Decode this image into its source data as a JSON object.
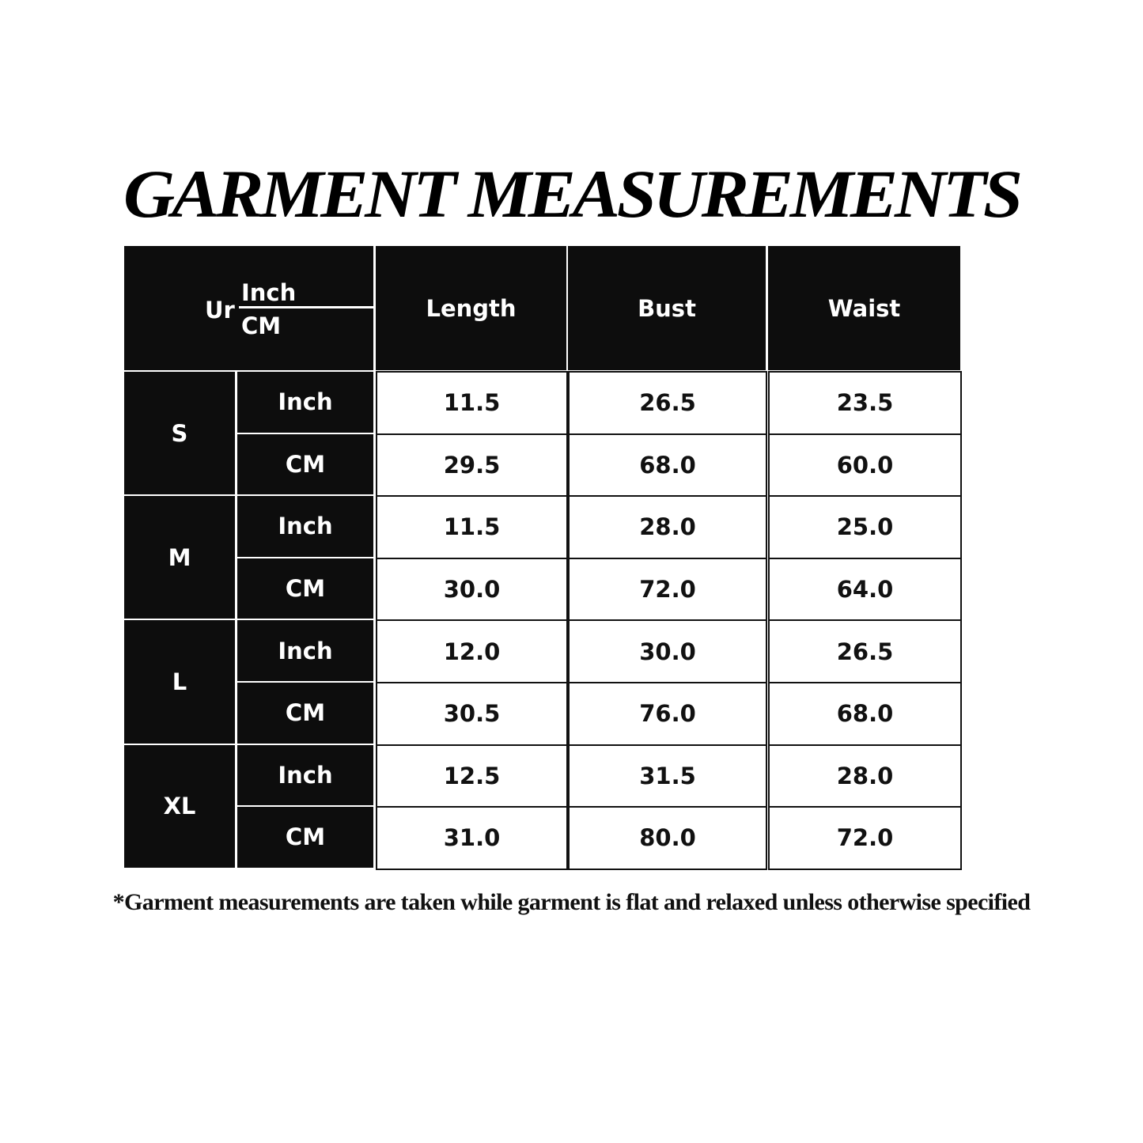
{
  "title": "GARMENT MEASUREMENTS",
  "table": {
    "corner": {
      "label": "Ur",
      "unit_top": "Inch",
      "unit_bottom": "CM"
    },
    "columns": [
      "Length",
      "Bust",
      "Waist"
    ],
    "sizes": [
      {
        "size": "S",
        "rows": [
          {
            "unit": "Inch",
            "values": [
              "11.5",
              "26.5",
              "23.5"
            ]
          },
          {
            "unit": "CM",
            "values": [
              "29.5",
              "68.0",
              "60.0"
            ]
          }
        ]
      },
      {
        "size": "M",
        "rows": [
          {
            "unit": "Inch",
            "values": [
              "11.5",
              "28.0",
              "25.0"
            ]
          },
          {
            "unit": "CM",
            "values": [
              "30.0",
              "72.0",
              "64.0"
            ]
          }
        ]
      },
      {
        "size": "L",
        "rows": [
          {
            "unit": "Inch",
            "values": [
              "12.0",
              "30.0",
              "26.5"
            ]
          },
          {
            "unit": "CM",
            "values": [
              "30.5",
              "76.0",
              "68.0"
            ]
          }
        ]
      },
      {
        "size": "XL",
        "rows": [
          {
            "unit": "Inch",
            "values": [
              "12.5",
              "31.5",
              "28.0"
            ]
          },
          {
            "unit": "CM",
            "values": [
              "31.0",
              "80.0",
              "72.0"
            ]
          }
        ]
      }
    ]
  },
  "footnote": "*Garment measurements are taken while garment is flat and relaxed unless otherwise specified"
}
